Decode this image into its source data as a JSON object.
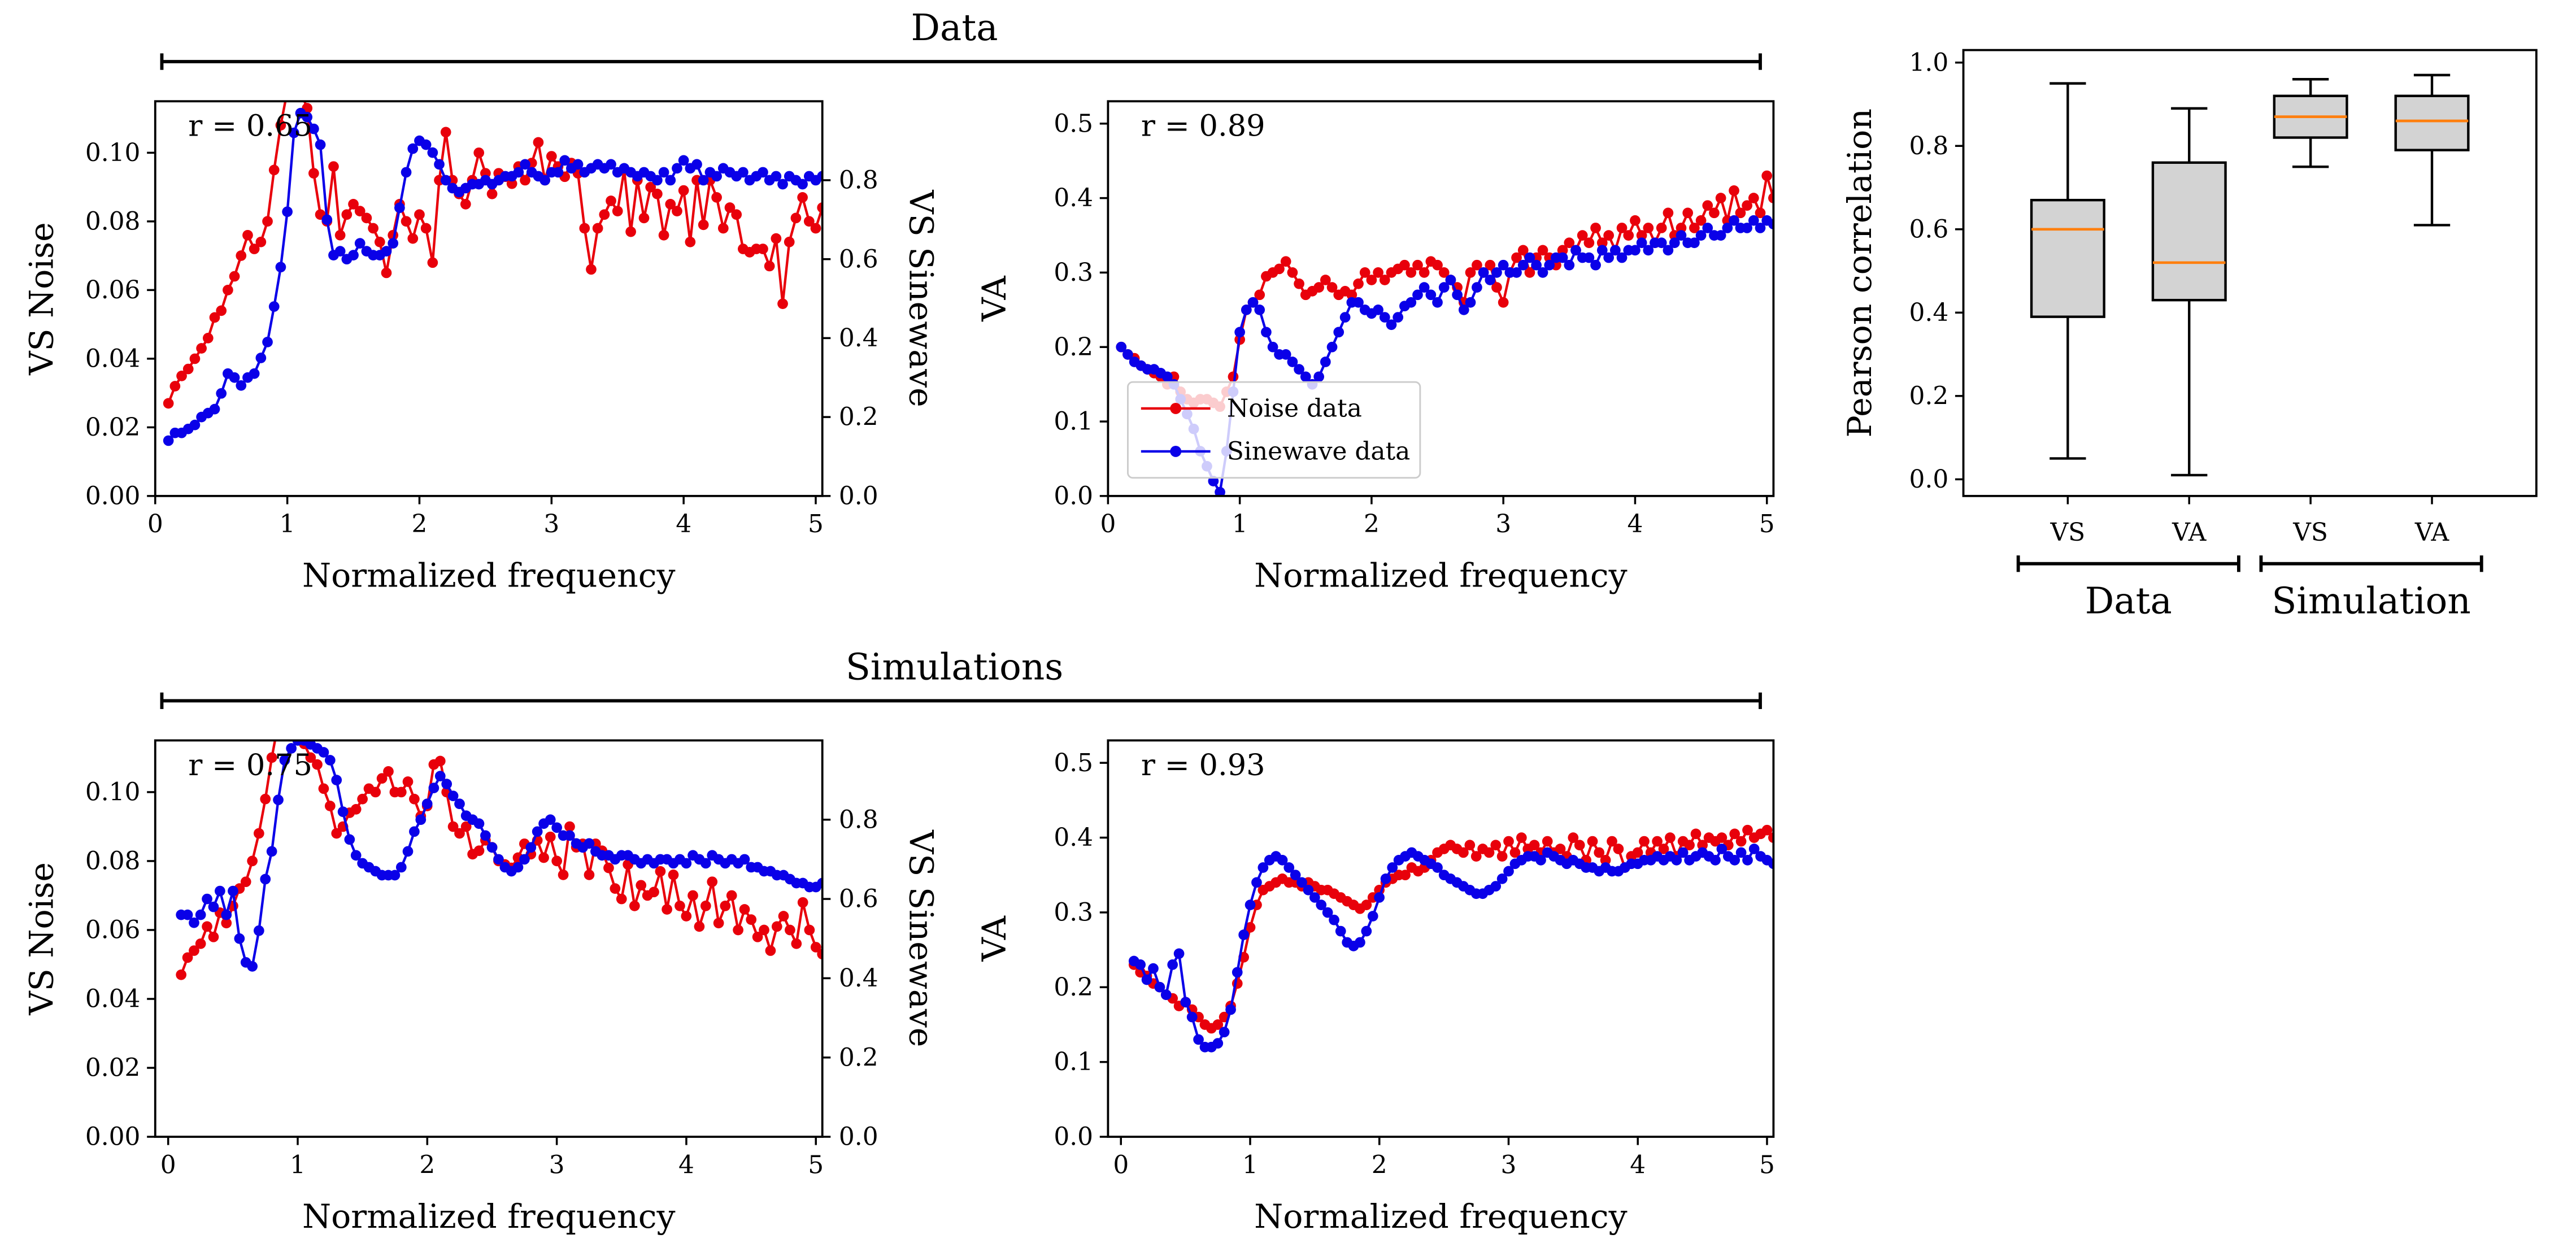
{
  "colors": {
    "noise": "#e8000b",
    "sine": "#0a00e8",
    "box_fill": "#d3d3d3",
    "median": "#ff7f0e"
  },
  "headers": {
    "data": "Data",
    "simulations": "Simulations"
  },
  "chart_data": [
    {
      "type": "line",
      "panel": "data-vs",
      "xlabel": "Normalized frequency",
      "ylabel": "VS Noise",
      "ylabel_right": "VS Sinewave",
      "xlim": [
        0,
        5.05
      ],
      "ylim": [
        0,
        0.115
      ],
      "ylim_right": [
        0,
        1.0
      ],
      "xticks": [
        "0",
        "1",
        "2",
        "3",
        "4",
        "5"
      ],
      "yticks": [
        "0.00",
        "0.02",
        "0.04",
        "0.06",
        "0.08",
        "0.10"
      ],
      "yticks_right": [
        "0.0",
        "0.2",
        "0.4",
        "0.6",
        "0.8"
      ],
      "annotation": "r = 0.65",
      "series": [
        {
          "axis": "left",
          "color_key": "noise",
          "x_start": 0.1,
          "x_step": 0.05,
          "values": [
            0.027,
            0.032,
            0.035,
            0.037,
            0.04,
            0.043,
            0.046,
            0.052,
            0.054,
            0.06,
            0.064,
            0.07,
            0.076,
            0.072,
            0.074,
            0.08,
            0.095,
            0.108,
            0.118,
            0.125,
            0.118,
            0.113,
            0.094,
            0.082,
            0.08,
            0.096,
            0.076,
            0.082,
            0.085,
            0.083,
            0.081,
            0.078,
            0.074,
            0.065,
            0.076,
            0.085,
            0.08,
            0.075,
            0.082,
            0.078,
            0.068,
            0.092,
            0.106,
            0.092,
            0.088,
            0.085,
            0.092,
            0.1,
            0.094,
            0.088,
            0.094,
            0.093,
            0.091,
            0.096,
            0.092,
            0.097,
            0.103,
            0.092,
            0.099,
            0.096,
            0.093,
            0.097,
            0.094,
            0.078,
            0.066,
            0.078,
            0.082,
            0.086,
            0.083,
            0.095,
            0.077,
            0.092,
            0.081,
            0.09,
            0.088,
            0.076,
            0.085,
            0.083,
            0.089,
            0.074,
            0.092,
            0.079,
            0.092,
            0.087,
            0.078,
            0.084,
            0.082,
            0.072,
            0.071,
            0.072,
            0.072,
            0.067,
            0.075,
            0.056,
            0.074,
            0.081,
            0.087,
            0.08,
            0.078,
            0.084
          ]
        },
        {
          "axis": "right",
          "color_key": "sine",
          "x_start": 0.1,
          "x_step": 0.05,
          "values": [
            0.14,
            0.16,
            0.16,
            0.17,
            0.18,
            0.2,
            0.21,
            0.22,
            0.26,
            0.31,
            0.3,
            0.28,
            0.3,
            0.31,
            0.35,
            0.39,
            0.48,
            0.58,
            0.72,
            0.92,
            0.97,
            0.96,
            0.93,
            0.89,
            0.7,
            0.61,
            0.62,
            0.6,
            0.61,
            0.64,
            0.62,
            0.61,
            0.61,
            0.62,
            0.64,
            0.73,
            0.82,
            0.88,
            0.9,
            0.89,
            0.87,
            0.84,
            0.8,
            0.78,
            0.77,
            0.78,
            0.79,
            0.79,
            0.8,
            0.79,
            0.8,
            0.81,
            0.81,
            0.82,
            0.84,
            0.82,
            0.81,
            0.8,
            0.82,
            0.82,
            0.85,
            0.83,
            0.84,
            0.82,
            0.83,
            0.84,
            0.83,
            0.84,
            0.82,
            0.83,
            0.82,
            0.81,
            0.82,
            0.81,
            0.8,
            0.82,
            0.8,
            0.83,
            0.85,
            0.83,
            0.84,
            0.8,
            0.82,
            0.81,
            0.83,
            0.82,
            0.81,
            0.82,
            0.8,
            0.81,
            0.82,
            0.8,
            0.81,
            0.79,
            0.81,
            0.8,
            0.79,
            0.81,
            0.8,
            0.81
          ]
        }
      ]
    },
    {
      "type": "line",
      "panel": "data-va",
      "xlabel": "Normalized frequency",
      "ylabel": "VA",
      "xlim": [
        0,
        5.05
      ],
      "ylim": [
        0,
        0.53
      ],
      "xticks": [
        "0",
        "1",
        "2",
        "3",
        "4",
        "5"
      ],
      "yticks": [
        "0.0",
        "0.1",
        "0.2",
        "0.3",
        "0.4",
        "0.5"
      ],
      "annotation": "r = 0.89",
      "legend": {
        "loc": "lower-left",
        "entries": [
          {
            "label": "Noise data",
            "color_key": "noise"
          },
          {
            "label": "Sinewave data",
            "color_key": "sine"
          }
        ]
      },
      "series": [
        {
          "name": "Noise data",
          "color_key": "noise",
          "x_start": 0.1,
          "x_step": 0.05,
          "values": [
            0.2,
            0.19,
            0.185,
            0.175,
            0.17,
            0.165,
            0.16,
            0.15,
            0.16,
            0.14,
            0.13,
            0.125,
            0.13,
            0.13,
            0.125,
            0.12,
            0.14,
            0.16,
            0.21,
            0.25,
            0.26,
            0.27,
            0.295,
            0.3,
            0.305,
            0.315,
            0.3,
            0.285,
            0.27,
            0.275,
            0.28,
            0.29,
            0.28,
            0.27,
            0.275,
            0.27,
            0.285,
            0.3,
            0.29,
            0.3,
            0.29,
            0.3,
            0.305,
            0.31,
            0.3,
            0.31,
            0.3,
            0.315,
            0.31,
            0.3,
            0.29,
            0.28,
            0.26,
            0.3,
            0.31,
            0.3,
            0.31,
            0.28,
            0.26,
            0.3,
            0.32,
            0.33,
            0.3,
            0.32,
            0.33,
            0.32,
            0.31,
            0.33,
            0.34,
            0.33,
            0.35,
            0.34,
            0.36,
            0.34,
            0.35,
            0.33,
            0.36,
            0.35,
            0.37,
            0.35,
            0.36,
            0.34,
            0.36,
            0.38,
            0.35,
            0.36,
            0.38,
            0.36,
            0.37,
            0.39,
            0.38,
            0.4,
            0.37,
            0.41,
            0.38,
            0.39,
            0.4,
            0.38,
            0.43,
            0.4
          ]
        },
        {
          "name": "Sinewave data",
          "color_key": "sine",
          "x_start": 0.1,
          "x_step": 0.05,
          "values": [
            0.2,
            0.19,
            0.18,
            0.175,
            0.17,
            0.17,
            0.165,
            0.16,
            0.15,
            0.13,
            0.11,
            0.09,
            0.06,
            0.04,
            0.02,
            0.005,
            0.06,
            0.14,
            0.22,
            0.25,
            0.26,
            0.25,
            0.22,
            0.2,
            0.19,
            0.19,
            0.18,
            0.17,
            0.16,
            0.15,
            0.16,
            0.18,
            0.2,
            0.22,
            0.24,
            0.26,
            0.26,
            0.25,
            0.245,
            0.25,
            0.24,
            0.23,
            0.24,
            0.255,
            0.26,
            0.27,
            0.28,
            0.27,
            0.26,
            0.28,
            0.29,
            0.27,
            0.25,
            0.26,
            0.28,
            0.3,
            0.29,
            0.3,
            0.31,
            0.3,
            0.3,
            0.31,
            0.32,
            0.31,
            0.3,
            0.31,
            0.32,
            0.32,
            0.31,
            0.33,
            0.32,
            0.32,
            0.31,
            0.33,
            0.32,
            0.33,
            0.32,
            0.33,
            0.33,
            0.34,
            0.33,
            0.34,
            0.34,
            0.33,
            0.34,
            0.35,
            0.34,
            0.34,
            0.35,
            0.36,
            0.35,
            0.35,
            0.36,
            0.37,
            0.36,
            0.36,
            0.37,
            0.36,
            0.37,
            0.365
          ]
        }
      ]
    },
    {
      "type": "line",
      "panel": "sim-vs",
      "xlabel": "Normalized frequency",
      "ylabel": "VS Noise",
      "ylabel_right": "VS Sinewave",
      "xlim": [
        -0.1,
        5.05
      ],
      "ylim": [
        0,
        0.115
      ],
      "ylim_right": [
        0,
        1.0
      ],
      "xticks": [
        "0",
        "1",
        "2",
        "3",
        "4",
        "5"
      ],
      "yticks": [
        "0.00",
        "0.02",
        "0.04",
        "0.06",
        "0.08",
        "0.10"
      ],
      "yticks_right": [
        "0.0",
        "0.2",
        "0.4",
        "0.6",
        "0.8"
      ],
      "annotation": "r = 0.75",
      "series": [
        {
          "axis": "left",
          "color_key": "noise",
          "x_start": 0.1,
          "x_step": 0.05,
          "values": [
            0.047,
            0.052,
            0.054,
            0.056,
            0.061,
            0.058,
            0.065,
            0.062,
            0.067,
            0.072,
            0.074,
            0.08,
            0.088,
            0.098,
            0.11,
            0.12,
            0.125,
            0.125,
            0.12,
            0.114,
            0.11,
            0.108,
            0.101,
            0.096,
            0.088,
            0.09,
            0.094,
            0.095,
            0.098,
            0.101,
            0.1,
            0.104,
            0.106,
            0.1,
            0.1,
            0.103,
            0.098,
            0.093,
            0.096,
            0.108,
            0.109,
            0.1,
            0.09,
            0.088,
            0.09,
            0.082,
            0.083,
            0.086,
            0.084,
            0.08,
            0.079,
            0.078,
            0.081,
            0.085,
            0.082,
            0.086,
            0.081,
            0.087,
            0.08,
            0.076,
            0.09,
            0.084,
            0.085,
            0.076,
            0.085,
            0.083,
            0.078,
            0.072,
            0.069,
            0.079,
            0.067,
            0.073,
            0.07,
            0.071,
            0.077,
            0.066,
            0.076,
            0.067,
            0.064,
            0.07,
            0.061,
            0.067,
            0.074,
            0.062,
            0.067,
            0.07,
            0.06,
            0.066,
            0.063,
            0.058,
            0.06,
            0.054,
            0.061,
            0.064,
            0.06,
            0.056,
            0.068,
            0.06,
            0.055,
            0.053
          ]
        },
        {
          "axis": "right",
          "color_key": "sine",
          "x_start": 0.1,
          "x_step": 0.05,
          "values": [
            0.56,
            0.56,
            0.54,
            0.56,
            0.6,
            0.58,
            0.62,
            0.56,
            0.62,
            0.5,
            0.44,
            0.43,
            0.52,
            0.65,
            0.72,
            0.85,
            0.95,
            0.98,
            1.0,
            1.0,
            0.99,
            0.98,
            0.97,
            0.95,
            0.9,
            0.82,
            0.75,
            0.71,
            0.69,
            0.68,
            0.67,
            0.66,
            0.66,
            0.66,
            0.68,
            0.72,
            0.77,
            0.8,
            0.84,
            0.88,
            0.91,
            0.89,
            0.86,
            0.84,
            0.81,
            0.8,
            0.79,
            0.76,
            0.73,
            0.7,
            0.68,
            0.67,
            0.68,
            0.7,
            0.73,
            0.77,
            0.79,
            0.8,
            0.78,
            0.76,
            0.76,
            0.74,
            0.73,
            0.74,
            0.72,
            0.71,
            0.71,
            0.7,
            0.71,
            0.71,
            0.7,
            0.69,
            0.7,
            0.69,
            0.7,
            0.7,
            0.69,
            0.7,
            0.69,
            0.71,
            0.7,
            0.69,
            0.71,
            0.7,
            0.69,
            0.7,
            0.69,
            0.7,
            0.68,
            0.68,
            0.67,
            0.67,
            0.66,
            0.66,
            0.65,
            0.64,
            0.64,
            0.63,
            0.63,
            0.64
          ]
        }
      ]
    },
    {
      "type": "line",
      "panel": "sim-va",
      "xlabel": "Normalized frequency",
      "ylabel": "VA",
      "xlim": [
        -0.1,
        5.05
      ],
      "ylim": [
        0,
        0.53
      ],
      "xticks": [
        "0",
        "1",
        "2",
        "3",
        "4",
        "5"
      ],
      "yticks": [
        "0.0",
        "0.1",
        "0.2",
        "0.3",
        "0.4",
        "0.5"
      ],
      "annotation": "r = 0.93",
      "series": [
        {
          "color_key": "noise",
          "x_start": 0.1,
          "x_step": 0.05,
          "values": [
            0.23,
            0.22,
            0.215,
            0.205,
            0.2,
            0.19,
            0.185,
            0.175,
            0.18,
            0.17,
            0.16,
            0.15,
            0.145,
            0.15,
            0.16,
            0.175,
            0.205,
            0.24,
            0.28,
            0.31,
            0.33,
            0.335,
            0.34,
            0.345,
            0.34,
            0.34,
            0.335,
            0.34,
            0.335,
            0.33,
            0.33,
            0.325,
            0.32,
            0.315,
            0.31,
            0.305,
            0.31,
            0.32,
            0.33,
            0.34,
            0.345,
            0.35,
            0.35,
            0.36,
            0.355,
            0.36,
            0.37,
            0.38,
            0.385,
            0.39,
            0.385,
            0.38,
            0.39,
            0.375,
            0.385,
            0.38,
            0.39,
            0.375,
            0.395,
            0.38,
            0.4,
            0.385,
            0.39,
            0.38,
            0.395,
            0.38,
            0.385,
            0.375,
            0.4,
            0.39,
            0.37,
            0.395,
            0.38,
            0.37,
            0.395,
            0.385,
            0.36,
            0.375,
            0.38,
            0.395,
            0.38,
            0.395,
            0.385,
            0.4,
            0.375,
            0.395,
            0.39,
            0.405,
            0.39,
            0.4,
            0.395,
            0.4,
            0.39,
            0.405,
            0.395,
            0.41,
            0.4,
            0.405,
            0.41,
            0.4
          ]
        },
        {
          "color_key": "sine",
          "x_start": 0.1,
          "x_step": 0.05,
          "values": [
            0.235,
            0.23,
            0.21,
            0.225,
            0.2,
            0.19,
            0.23,
            0.245,
            0.18,
            0.16,
            0.13,
            0.12,
            0.12,
            0.125,
            0.14,
            0.17,
            0.22,
            0.27,
            0.31,
            0.34,
            0.36,
            0.37,
            0.375,
            0.37,
            0.36,
            0.35,
            0.34,
            0.33,
            0.32,
            0.31,
            0.3,
            0.29,
            0.275,
            0.26,
            0.255,
            0.26,
            0.275,
            0.295,
            0.32,
            0.345,
            0.36,
            0.37,
            0.375,
            0.38,
            0.375,
            0.37,
            0.365,
            0.36,
            0.35,
            0.345,
            0.34,
            0.335,
            0.33,
            0.325,
            0.325,
            0.33,
            0.335,
            0.345,
            0.355,
            0.365,
            0.37,
            0.375,
            0.375,
            0.37,
            0.38,
            0.375,
            0.37,
            0.365,
            0.37,
            0.365,
            0.36,
            0.36,
            0.355,
            0.36,
            0.355,
            0.355,
            0.36,
            0.365,
            0.365,
            0.37,
            0.37,
            0.375,
            0.37,
            0.375,
            0.37,
            0.38,
            0.37,
            0.375,
            0.38,
            0.375,
            0.37,
            0.385,
            0.375,
            0.37,
            0.38,
            0.37,
            0.385,
            0.375,
            0.37,
            0.365
          ]
        }
      ]
    },
    {
      "type": "box",
      "panel": "pearson",
      "ylabel": "Pearson correlation",
      "ylim": [
        -0.04,
        1.03
      ],
      "yticks": [
        "0.0",
        "0.2",
        "0.4",
        "0.6",
        "0.8",
        "1.0"
      ],
      "categories": [
        "VS",
        "VA",
        "VS",
        "VA"
      ],
      "groups": [
        {
          "label": "Data",
          "span": [
            0,
            1
          ]
        },
        {
          "label": "Simulation",
          "span": [
            2,
            3
          ]
        }
      ],
      "boxes": [
        {
          "min": 0.05,
          "q1": 0.39,
          "median": 0.6,
          "q3": 0.67,
          "max": 0.95
        },
        {
          "min": 0.01,
          "q1": 0.43,
          "median": 0.52,
          "q3": 0.76,
          "max": 0.89
        },
        {
          "min": 0.75,
          "q1": 0.82,
          "median": 0.87,
          "q3": 0.92,
          "max": 0.96
        },
        {
          "min": 0.61,
          "q1": 0.79,
          "median": 0.86,
          "q3": 0.92,
          "max": 0.97
        }
      ]
    }
  ]
}
